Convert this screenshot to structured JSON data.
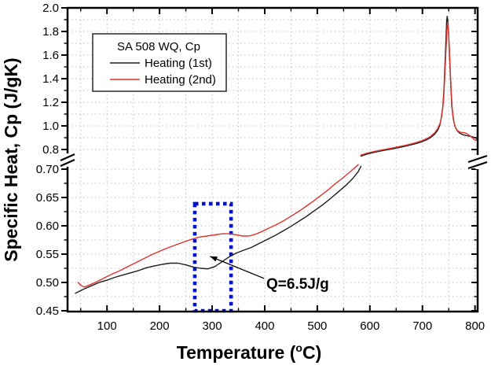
{
  "legend": {
    "title": "SA 508 WQ, Cp",
    "entries": [
      {
        "label": "Heating (1st)",
        "color": "#1c1c1c"
      },
      {
        "label": "Heating (2nd)",
        "color": "#dd342c"
      }
    ]
  },
  "labels": {
    "x_title_pre": "Temperature (",
    "x_title_sup": "o",
    "x_title_post": "C)"
  },
  "chart_data": {
    "type": "line",
    "title": "",
    "xlabel": "Temperature (°C)",
    "ylabel": "Specific Heat, Cp (J/gK)",
    "grid": "dotted",
    "legend_position": "upper-left",
    "y_axis_broken": true,
    "x_axis": {
      "range": [
        25,
        805
      ],
      "tick_values": [
        100,
        200,
        300,
        400,
        500,
        600,
        700,
        800
      ],
      "tick_labels": [
        "100",
        "200",
        "300",
        "400",
        "500",
        "600",
        "700",
        "800"
      ],
      "minor_step": 50
    },
    "y_upper": {
      "range": [
        0.8,
        2.0
      ],
      "tick_values": [
        0.8,
        1.0,
        1.2,
        1.4,
        1.6,
        1.8,
        2.0
      ],
      "tick_labels": [
        "0.8",
        "1.0",
        "1.2",
        "1.4",
        "1.6",
        "1.8",
        "2.0"
      ],
      "minor_values": [
        0.9,
        1.1,
        1.3,
        1.5,
        1.7,
        1.9
      ]
    },
    "y_lower": {
      "range": [
        0.45,
        0.7
      ],
      "tick_values": [
        0.45,
        0.5,
        0.55,
        0.6,
        0.65,
        0.7
      ],
      "tick_labels": [
        "0.45",
        "0.50",
        "0.55",
        "0.60",
        "0.65",
        "0.70"
      ],
      "minor_values": [
        0.475,
        0.525,
        0.575,
        0.625,
        0.675
      ]
    },
    "series": [
      {
        "name": "Heating (1st)",
        "color": "#1c1c1c",
        "lower_points": [
          [
            40,
            0.481
          ],
          [
            55,
            0.488
          ],
          [
            70,
            0.494
          ],
          [
            85,
            0.5
          ],
          [
            100,
            0.504
          ],
          [
            115,
            0.509
          ],
          [
            130,
            0.513
          ],
          [
            145,
            0.517
          ],
          [
            160,
            0.521
          ],
          [
            175,
            0.526
          ],
          [
            190,
            0.529
          ],
          [
            205,
            0.532
          ],
          [
            220,
            0.534
          ],
          [
            235,
            0.534
          ],
          [
            250,
            0.531
          ],
          [
            265,
            0.527
          ],
          [
            278,
            0.525
          ],
          [
            292,
            0.524
          ],
          [
            305,
            0.528
          ],
          [
            318,
            0.536
          ],
          [
            332,
            0.545
          ],
          [
            346,
            0.552
          ],
          [
            360,
            0.557
          ],
          [
            375,
            0.562
          ],
          [
            390,
            0.569
          ],
          [
            405,
            0.576
          ],
          [
            420,
            0.583
          ],
          [
            435,
            0.591
          ],
          [
            450,
            0.599
          ],
          [
            465,
            0.608
          ],
          [
            480,
            0.617
          ],
          [
            495,
            0.627
          ],
          [
            510,
            0.637
          ],
          [
            525,
            0.648
          ],
          [
            540,
            0.66
          ],
          [
            555,
            0.672
          ],
          [
            568,
            0.684
          ],
          [
            578,
            0.696
          ],
          [
            583,
            0.705
          ]
        ],
        "upper_points": [
          [
            583,
            0.744
          ],
          [
            595,
            0.762
          ],
          [
            610,
            0.778
          ],
          [
            625,
            0.791
          ],
          [
            640,
            0.803
          ],
          [
            655,
            0.816
          ],
          [
            670,
            0.83
          ],
          [
            685,
            0.847
          ],
          [
            698,
            0.864
          ],
          [
            708,
            0.882
          ],
          [
            716,
            0.903
          ],
          [
            723,
            0.928
          ],
          [
            729,
            0.963
          ],
          [
            733,
            1.005
          ],
          [
            736,
            1.07
          ],
          [
            739,
            1.17
          ],
          [
            741,
            1.32
          ],
          [
            743,
            1.53
          ],
          [
            745,
            1.75
          ],
          [
            746,
            1.88
          ],
          [
            747,
            1.928
          ],
          [
            748,
            1.9
          ],
          [
            750,
            1.76
          ],
          [
            752,
            1.55
          ],
          [
            754,
            1.33
          ],
          [
            756,
            1.16
          ],
          [
            759,
            1.05
          ],
          [
            762,
            0.995
          ],
          [
            766,
            0.96
          ],
          [
            771,
            0.938
          ],
          [
            777,
            0.925
          ],
          [
            784,
            0.918
          ],
          [
            791,
            0.912
          ],
          [
            797,
            0.905
          ],
          [
            801,
            0.897
          ],
          [
            805,
            0.89
          ]
        ]
      },
      {
        "name": "Heating (2nd)",
        "color": "#dd342c",
        "lower_points": [
          [
            45,
            0.5
          ],
          [
            50,
            0.495
          ],
          [
            57,
            0.492
          ],
          [
            65,
            0.495
          ],
          [
            80,
            0.501
          ],
          [
            95,
            0.508
          ],
          [
            110,
            0.515
          ],
          [
            125,
            0.521
          ],
          [
            140,
            0.528
          ],
          [
            155,
            0.535
          ],
          [
            170,
            0.542
          ],
          [
            185,
            0.549
          ],
          [
            200,
            0.555
          ],
          [
            215,
            0.561
          ],
          [
            230,
            0.566
          ],
          [
            245,
            0.571
          ],
          [
            260,
            0.576
          ],
          [
            275,
            0.58
          ],
          [
            290,
            0.582
          ],
          [
            305,
            0.584
          ],
          [
            320,
            0.586
          ],
          [
            333,
            0.586
          ],
          [
            346,
            0.584
          ],
          [
            358,
            0.582
          ],
          [
            370,
            0.582
          ],
          [
            382,
            0.585
          ],
          [
            395,
            0.59
          ],
          [
            408,
            0.596
          ],
          [
            422,
            0.602
          ],
          [
            436,
            0.609
          ],
          [
            450,
            0.617
          ],
          [
            464,
            0.625
          ],
          [
            478,
            0.634
          ],
          [
            492,
            0.643
          ],
          [
            506,
            0.653
          ],
          [
            520,
            0.663
          ],
          [
            534,
            0.674
          ],
          [
            548,
            0.684
          ],
          [
            562,
            0.695
          ],
          [
            572,
            0.703
          ],
          [
            578,
            0.708
          ]
        ],
        "upper_points": [
          [
            583,
            0.752
          ],
          [
            595,
            0.77
          ],
          [
            610,
            0.785
          ],
          [
            625,
            0.798
          ],
          [
            640,
            0.81
          ],
          [
            655,
            0.824
          ],
          [
            670,
            0.838
          ],
          [
            685,
            0.855
          ],
          [
            698,
            0.872
          ],
          [
            708,
            0.891
          ],
          [
            716,
            0.912
          ],
          [
            723,
            0.94
          ],
          [
            729,
            0.976
          ],
          [
            734,
            1.028
          ],
          [
            737,
            1.095
          ],
          [
            740,
            1.205
          ],
          [
            742,
            1.365
          ],
          [
            744,
            1.565
          ],
          [
            746,
            1.745
          ],
          [
            747,
            1.845
          ],
          [
            748,
            1.872
          ],
          [
            749,
            1.83
          ],
          [
            751,
            1.68
          ],
          [
            753,
            1.47
          ],
          [
            755,
            1.27
          ],
          [
            757,
            1.13
          ],
          [
            760,
            1.03
          ],
          [
            763,
            0.985
          ],
          [
            767,
            0.958
          ],
          [
            772,
            0.946
          ],
          [
            778,
            0.943
          ],
          [
            783,
            0.938
          ],
          [
            788,
            0.925
          ],
          [
            793,
            0.906
          ],
          [
            798,
            0.886
          ],
          [
            801,
            0.878
          ],
          [
            805,
            0.886
          ]
        ]
      }
    ],
    "highlight_box": {
      "x_range": [
        267,
        336
      ],
      "y_range": [
        0.45,
        0.639
      ],
      "color": "#0012cc",
      "style": "dashed"
    },
    "annotation": {
      "text": "Q=6.5J/g",
      "arrow_from": [
        399,
        0.507
      ],
      "arrow_to": [
        296,
        0.546
      ]
    }
  }
}
